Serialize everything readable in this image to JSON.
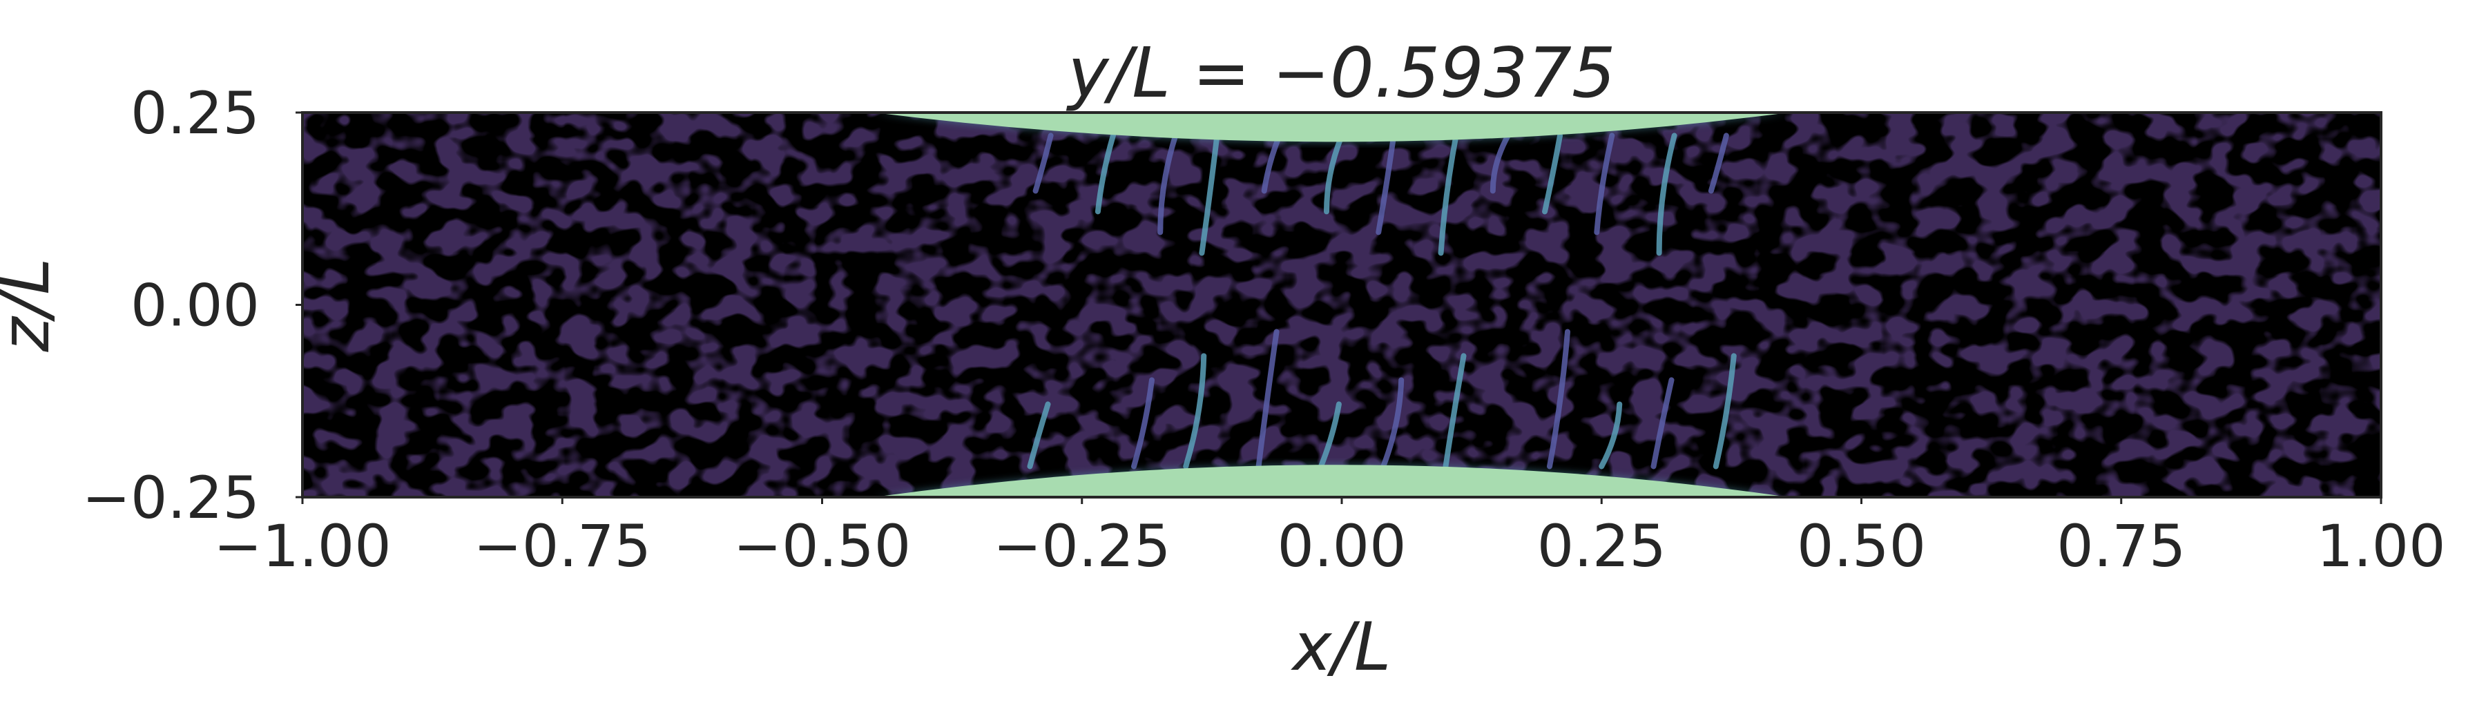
{
  "chart_data": {
    "type": "heatmap",
    "title": "y/L = −0.59375",
    "xlabel": "x/L",
    "ylabel": "z/L",
    "xlim": [
      -1.0,
      1.0
    ],
    "ylim": [
      -0.25,
      0.25
    ],
    "x_ticks": [
      -1.0,
      -0.75,
      -0.5,
      -0.25,
      0.0,
      0.25,
      0.5,
      0.75,
      1.0
    ],
    "x_tick_labels": [
      "−1.00",
      "−0.75",
      "−0.50",
      "−0.25",
      "0.00",
      "0.25",
      "0.50",
      "0.75",
      "1.00"
    ],
    "y_ticks": [
      -0.25,
      0.0,
      0.25
    ],
    "y_tick_labels": [
      "−0.25",
      "0.00",
      "0.25"
    ],
    "grid": false,
    "colormap": [
      "#000000",
      "#3a2a5a",
      "#5a5fa8",
      "#5aa0b8",
      "#a8dcb0"
    ],
    "background_color": "#3d2a58"
  }
}
